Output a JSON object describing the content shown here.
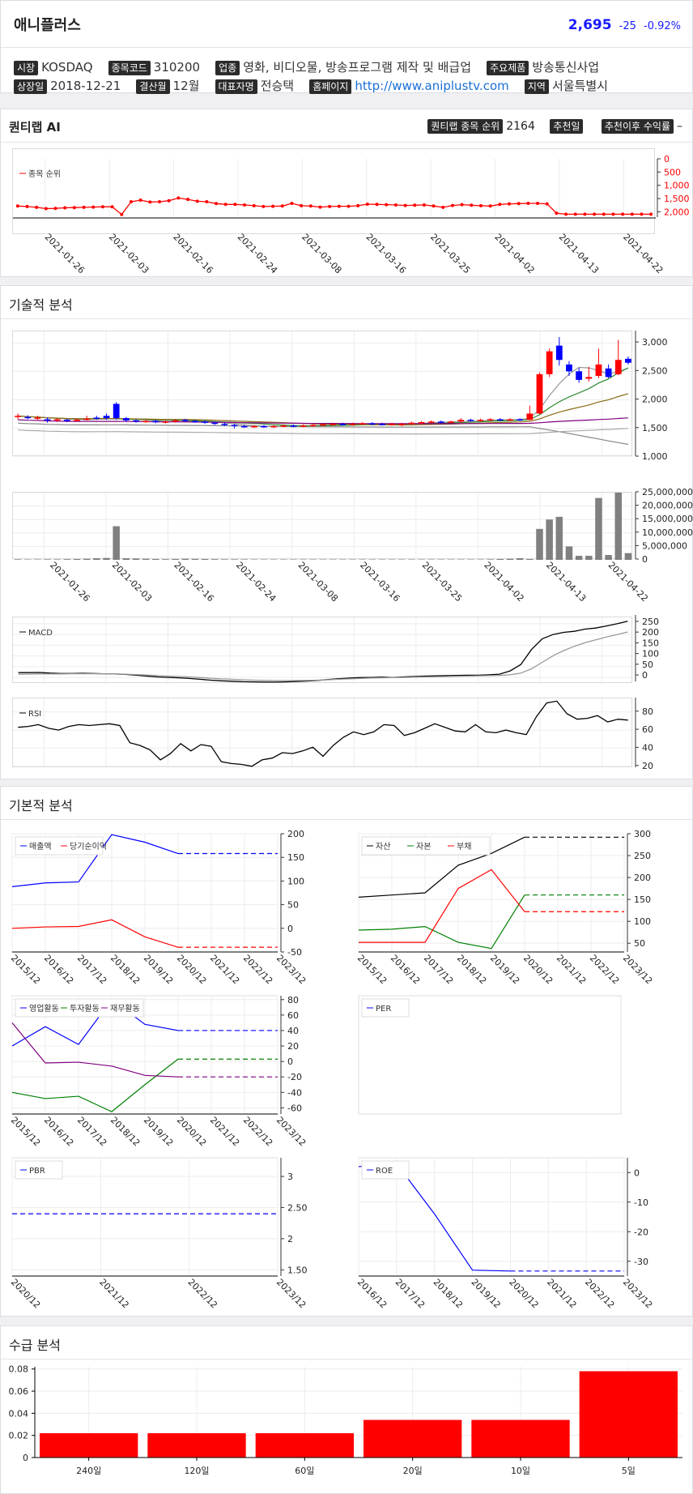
{
  "header": {
    "name": "애니플러스",
    "price": "2,695",
    "change": "-25",
    "change_pct": "-0.92%"
  },
  "info": {
    "market_label": "시장",
    "market": "KOSDAQ",
    "code_label": "종목코드",
    "code": "310200",
    "industry_label": "업종",
    "industry": "영화, 비디오물, 방송프로그램 제작 및 배급업",
    "product_label": "주요제품",
    "product": "방송통신사업",
    "listed_label": "상장일",
    "listed": "2018-12-21",
    "fiscal_label": "결산월",
    "fiscal": "12월",
    "ceo_label": "대표자명",
    "ceo": "전승택",
    "homepage_label": "홈페이지",
    "homepage": "http://www.aniplustv.com",
    "region_label": "지역",
    "region": "서울특별시"
  },
  "quantilab": {
    "title": "퀀티랩 AI",
    "rank_label": "퀀티랩 종목 순위",
    "rank": "2164",
    "rec_date_label": "추천일",
    "rec_return_label": "추천이후 수익률",
    "rec_return": "–"
  },
  "sections": {
    "technical": "기술적 분석",
    "fundamental": "기본적 분석",
    "supply": "수급 분석"
  },
  "colors": {
    "up": "#ff0000",
    "down": "#0000ff",
    "price": "#1a1aff"
  },
  "chart_data": [
    {
      "id": "rank",
      "type": "line",
      "series": [
        {
          "name": "종목 순위",
          "values": [
            1780,
            1800,
            1830,
            1880,
            1870,
            1850,
            1840,
            1830,
            1820,
            1810,
            1810,
            2100,
            1620,
            1560,
            1630,
            1620,
            1580,
            1480,
            1530,
            1600,
            1620,
            1690,
            1720,
            1720,
            1740,
            1770,
            1800,
            1790,
            1780,
            1680,
            1770,
            1780,
            1820,
            1800,
            1790,
            1790,
            1770,
            1710,
            1720,
            1730,
            1740,
            1760,
            1750,
            1740,
            1780,
            1830,
            1760,
            1730,
            1750,
            1770,
            1780,
            1720,
            1700,
            1690,
            1680,
            1680,
            1700,
            2050,
            2090,
            2090,
            2090,
            2090,
            2090,
            2090,
            2090,
            2090,
            2090,
            2090
          ]
        }
      ],
      "x_labels": [
        "2021-01-26",
        "2021-02-03",
        "2021-02-16",
        "2021-02-24",
        "2021-03-08",
        "2021-03-16",
        "2021-03-25",
        "2021-04-02",
        "2021-04-13",
        "2021-04-22"
      ],
      "y_ticks": [
        "0",
        "500",
        "1,000",
        "1,500",
        "2,000"
      ],
      "ylim": [
        0,
        2200
      ],
      "reversed": true,
      "legend": "top-left"
    },
    {
      "id": "candle",
      "type": "candlestick",
      "ylim": [
        1000,
        3200
      ],
      "y_ticks": [
        "1,000",
        "1,500",
        "2,000",
        "2,500",
        "3,000"
      ],
      "candles": [
        [
          1700,
          1720,
          1660,
          1760
        ],
        [
          1700,
          1690,
          1660,
          1730
        ],
        [
          1680,
          1690,
          1650,
          1720
        ],
        [
          1660,
          1640,
          1600,
          1690
        ],
        [
          1640,
          1660,
          1610,
          1680
        ],
        [
          1650,
          1640,
          1610,
          1670
        ],
        [
          1640,
          1650,
          1620,
          1680
        ],
        [
          1660,
          1670,
          1640,
          1720
        ],
        [
          1690,
          1680,
          1650,
          1720
        ],
        [
          1720,
          1680,
          1650,
          1760
        ],
        [
          1930,
          1680,
          1650,
          1960
        ],
        [
          1680,
          1640,
          1610,
          1700
        ],
        [
          1640,
          1620,
          1600,
          1660
        ],
        [
          1620,
          1630,
          1600,
          1650
        ],
        [
          1630,
          1610,
          1590,
          1650
        ],
        [
          1610,
          1620,
          1590,
          1640
        ],
        [
          1620,
          1640,
          1600,
          1660
        ],
        [
          1650,
          1630,
          1610,
          1670
        ],
        [
          1630,
          1620,
          1600,
          1650
        ],
        [
          1620,
          1600,
          1580,
          1640
        ],
        [
          1600,
          1580,
          1560,
          1620
        ],
        [
          1580,
          1560,
          1540,
          1600
        ],
        [
          1560,
          1540,
          1500,
          1580
        ],
        [
          1540,
          1530,
          1510,
          1560
        ],
        [
          1530,
          1540,
          1510,
          1560
        ],
        [
          1540,
          1530,
          1510,
          1560
        ],
        [
          1530,
          1540,
          1510,
          1560
        ],
        [
          1540,
          1550,
          1520,
          1570
        ],
        [
          1550,
          1540,
          1520,
          1570
        ],
        [
          1540,
          1550,
          1520,
          1570
        ],
        [
          1550,
          1560,
          1530,
          1580
        ],
        [
          1560,
          1570,
          1540,
          1590
        ],
        [
          1570,
          1580,
          1550,
          1600
        ],
        [
          1580,
          1570,
          1550,
          1600
        ],
        [
          1570,
          1580,
          1550,
          1600
        ],
        [
          1580,
          1590,
          1560,
          1610
        ],
        [
          1590,
          1580,
          1560,
          1610
        ],
        [
          1580,
          1570,
          1550,
          1600
        ],
        [
          1570,
          1580,
          1550,
          1600
        ],
        [
          1560,
          1580,
          1540,
          1600
        ],
        [
          1580,
          1600,
          1560,
          1620
        ],
        [
          1600,
          1610,
          1580,
          1630
        ],
        [
          1610,
          1620,
          1590,
          1640
        ],
        [
          1620,
          1610,
          1590,
          1640
        ],
        [
          1610,
          1620,
          1590,
          1640
        ],
        [
          1620,
          1650,
          1600,
          1680
        ],
        [
          1650,
          1640,
          1620,
          1670
        ],
        [
          1640,
          1650,
          1620,
          1670
        ],
        [
          1650,
          1660,
          1630,
          1680
        ],
        [
          1660,
          1650,
          1630,
          1680
        ],
        [
          1650,
          1660,
          1630,
          1680
        ],
        [
          1660,
          1650,
          1630,
          1680
        ],
        [
          1650,
          1760,
          1640,
          1900
        ],
        [
          1760,
          2450,
          1750,
          2480
        ],
        [
          2450,
          2850,
          2400,
          2900
        ],
        [
          2950,
          2700,
          2600,
          3100
        ],
        [
          2620,
          2500,
          2420,
          2680
        ],
        [
          2500,
          2350,
          2300,
          2560
        ],
        [
          2370,
          2400,
          2320,
          2580
        ],
        [
          2420,
          2620,
          2380,
          2900
        ],
        [
          2550,
          2400,
          2380,
          2620
        ],
        [
          2450,
          2700,
          2430,
          3050
        ],
        [
          2720,
          2650,
          2620,
          2760
        ]
      ],
      "ma_lines": [
        "#999999",
        "#2e8b2e",
        "#8b6914",
        "#800080",
        "#888888",
        "#aaaaaa"
      ]
    },
    {
      "id": "volume",
      "type": "bar",
      "y_ticks": [
        "0",
        "5,000,000",
        "10,000,000",
        "15,000,000",
        "20,000,000",
        "25,000,000"
      ],
      "ylim": [
        0,
        25000000
      ],
      "values": [
        200000,
        150000,
        150000,
        200000,
        180000,
        250000,
        300000,
        400000,
        600000,
        700000,
        12500000,
        600000,
        500000,
        400000,
        300000,
        250000,
        300000,
        400000,
        350000,
        300000,
        250000,
        200000,
        200000,
        180000,
        150000,
        150000,
        150000,
        150000,
        150000,
        150000,
        150000,
        150000,
        150000,
        150000,
        150000,
        150000,
        150000,
        150000,
        150000,
        150000,
        150000,
        150000,
        150000,
        150000,
        150000,
        150000,
        150000,
        150000,
        200000,
        300000,
        400000,
        600000,
        300000,
        11500000,
        15000000,
        16000000,
        5000000,
        1500000,
        1500000,
        23000000,
        1800000,
        25000000,
        2500000
      ],
      "x_labels": [
        "2021-01-26",
        "2021-02-03",
        "2021-02-16",
        "2021-02-24",
        "2021-03-08",
        "2021-03-16",
        "2021-03-25",
        "2021-04-02",
        "2021-04-13",
        "2021-04-22"
      ]
    },
    {
      "id": "macd",
      "type": "line",
      "series": [
        {
          "name": "MACD",
          "values": [
            22,
            22,
            23,
            20,
            18,
            18,
            19,
            18,
            17,
            16,
            14,
            10,
            6,
            2,
            0,
            -2,
            -5,
            -9,
            -13,
            -16,
            -18,
            -20,
            -21,
            -22,
            -22,
            -21,
            -19,
            -17,
            -14,
            -10,
            -6,
            -3,
            -1,
            0,
            1,
            0,
            2,
            4,
            6,
            7,
            8,
            9,
            10,
            10,
            12,
            15,
            30,
            60,
            130,
            180,
            200,
            210,
            215,
            225,
            230,
            240,
            250,
            262
          ]
        },
        {
          "name": "signal",
          "values": [
            14,
            15,
            16,
            16,
            16,
            17,
            17,
            17,
            17,
            16,
            15,
            13,
            11,
            8,
            6,
            4,
            2,
            -1,
            -4,
            -7,
            -9,
            -11,
            -13,
            -14,
            -15,
            -15,
            -15,
            -14,
            -13,
            -11,
            -9,
            -7,
            -5,
            -3,
            -2,
            -1,
            0,
            1,
            2,
            3,
            4,
            5,
            6,
            7,
            8,
            9,
            12,
            20,
            40,
            70,
            100,
            125,
            145,
            162,
            175,
            188,
            200,
            212
          ]
        }
      ],
      "y_ticks": [
        "0",
        "50",
        "100",
        "150",
        "200",
        "250"
      ],
      "ylim": [
        -30,
        280
      ],
      "legend": "top-left"
    },
    {
      "id": "rsi",
      "type": "line",
      "series": [
        {
          "name": "RSI",
          "values": [
            63,
            64,
            66,
            62,
            60,
            64,
            66,
            65,
            66,
            67,
            65,
            46,
            43,
            38,
            27,
            34,
            45,
            37,
            44,
            42,
            25,
            23,
            22,
            20,
            27,
            29,
            35,
            34,
            37,
            41,
            31,
            43,
            52,
            58,
            55,
            58,
            66,
            65,
            54,
            57,
            62,
            67,
            63,
            59,
            58,
            66,
            58,
            57,
            60,
            57,
            55,
            75,
            90,
            92,
            78,
            72,
            73,
            76,
            69,
            72,
            71
          ]
        }
      ],
      "y_ticks": [
        "20",
        "40",
        "60",
        "80"
      ],
      "ylim": [
        18,
        95
      ],
      "legend": "top-left"
    },
    {
      "id": "sales",
      "type": "line",
      "categories": [
        "2015/12",
        "2016/12",
        "2017/12",
        "2018/12",
        "2019/12",
        "2020/12",
        "2021/12",
        "2022/12",
        "2023/12"
      ],
      "series": [
        {
          "name": "매출액",
          "color": "#0000ff",
          "values": [
            88,
            96,
            98,
            198,
            182,
            158,
            158,
            158,
            158
          ],
          "dashed_from": 5
        },
        {
          "name": "당기순이익",
          "color": "#ff0000",
          "values": [
            0,
            3,
            4,
            18,
            -18,
            -40,
            -40,
            -40,
            -40
          ],
          "dashed_from": 5
        }
      ],
      "y_ticks": [
        "-50",
        "0",
        "50",
        "100",
        "150",
        "200"
      ],
      "ylim": [
        -50,
        200
      ]
    },
    {
      "id": "balance",
      "type": "line",
      "categories": [
        "2015/12",
        "2016/12",
        "2017/12",
        "2018/12",
        "2019/12",
        "2020/12",
        "2021/12",
        "2022/12",
        "2023/12"
      ],
      "series": [
        {
          "name": "자산",
          "color": "#000000",
          "values": [
            155,
            160,
            165,
            228,
            255,
            292,
            292,
            292,
            292
          ],
          "dashed_from": 5
        },
        {
          "name": "자본",
          "color": "#008000",
          "values": [
            80,
            82,
            88,
            52,
            38,
            160,
            160,
            160,
            160
          ],
          "dashed_from": 5
        },
        {
          "name": "부채",
          "color": "#ff0000",
          "values": [
            52,
            52,
            52,
            175,
            218,
            122,
            122,
            122,
            122
          ],
          "dashed_from": 5
        }
      ],
      "y_ticks": [
        "50",
        "100",
        "150",
        "200",
        "250",
        "300"
      ],
      "ylim": [
        30,
        300
      ]
    },
    {
      "id": "cashflow",
      "type": "line",
      "categories": [
        "2015/12",
        "2016/12",
        "2017/12",
        "2018/12",
        "2019/12",
        "2020/12",
        "2021/12",
        "2022/12",
        "2023/12"
      ],
      "series": [
        {
          "name": "영업활동",
          "color": "#0000ff",
          "values": [
            20,
            45,
            22,
            80,
            48,
            40,
            40,
            40,
            40
          ],
          "dashed_from": 5
        },
        {
          "name": "투자활동",
          "color": "#008000",
          "values": [
            -40,
            -48,
            -45,
            -65,
            -30,
            3,
            3,
            3,
            3
          ],
          "dashed_from": 5
        },
        {
          "name": "재무활동",
          "color": "#800080",
          "values": [
            50,
            -2,
            -1,
            -6,
            -18,
            -20,
            -20,
            -20,
            -20
          ],
          "dashed_from": 5
        }
      ],
      "y_ticks": [
        "-60",
        "-40",
        "-20",
        "0",
        "20",
        "40",
        "60",
        "80"
      ],
      "ylim": [
        -68,
        85
      ]
    },
    {
      "id": "per",
      "type": "line",
      "series": [
        {
          "name": "PER",
          "values": []
        }
      ],
      "categories": [],
      "y_ticks": []
    },
    {
      "id": "pbr",
      "type": "line",
      "categories": [
        "2020/12",
        "2021/12",
        "2022/12",
        "2023/12"
      ],
      "series": [
        {
          "name": "PBR",
          "color": "#0000ff",
          "values": [
            2.4,
            2.4,
            2.4,
            2.4
          ],
          "dashed_from": 0
        }
      ],
      "y_ticks": [
        "1.50",
        "2",
        "2.50",
        "3"
      ],
      "ylim": [
        1.4,
        3.3
      ]
    },
    {
      "id": "roe",
      "type": "line",
      "categories": [
        "2016/12",
        "2017/12",
        "2018/12",
        "2019/12",
        "2020/12",
        "2021/12",
        "2022/12",
        "2023/12"
      ],
      "series": [
        {
          "name": "ROE",
          "color": "#0000ff",
          "values": [
            2,
            3,
            -14,
            -33,
            -33.3,
            -33.3,
            -33.3,
            -33.3
          ],
          "dashed_from": 4
        }
      ],
      "y_ticks": [
        "0",
        "-10",
        "-20",
        "-30"
      ],
      "ylim": [
        -35,
        5
      ]
    },
    {
      "id": "supply",
      "type": "bar",
      "categories": [
        "240일",
        "120일",
        "60일",
        "20일",
        "10일",
        "5일"
      ],
      "values": [
        0.022,
        0.022,
        0.022,
        0.034,
        0.034,
        0.078
      ],
      "y_ticks": [
        "0",
        "0.02",
        "0.04",
        "0.06",
        "0.08"
      ],
      "ylim": [
        0,
        0.082
      ],
      "color": "#ff0000"
    }
  ]
}
